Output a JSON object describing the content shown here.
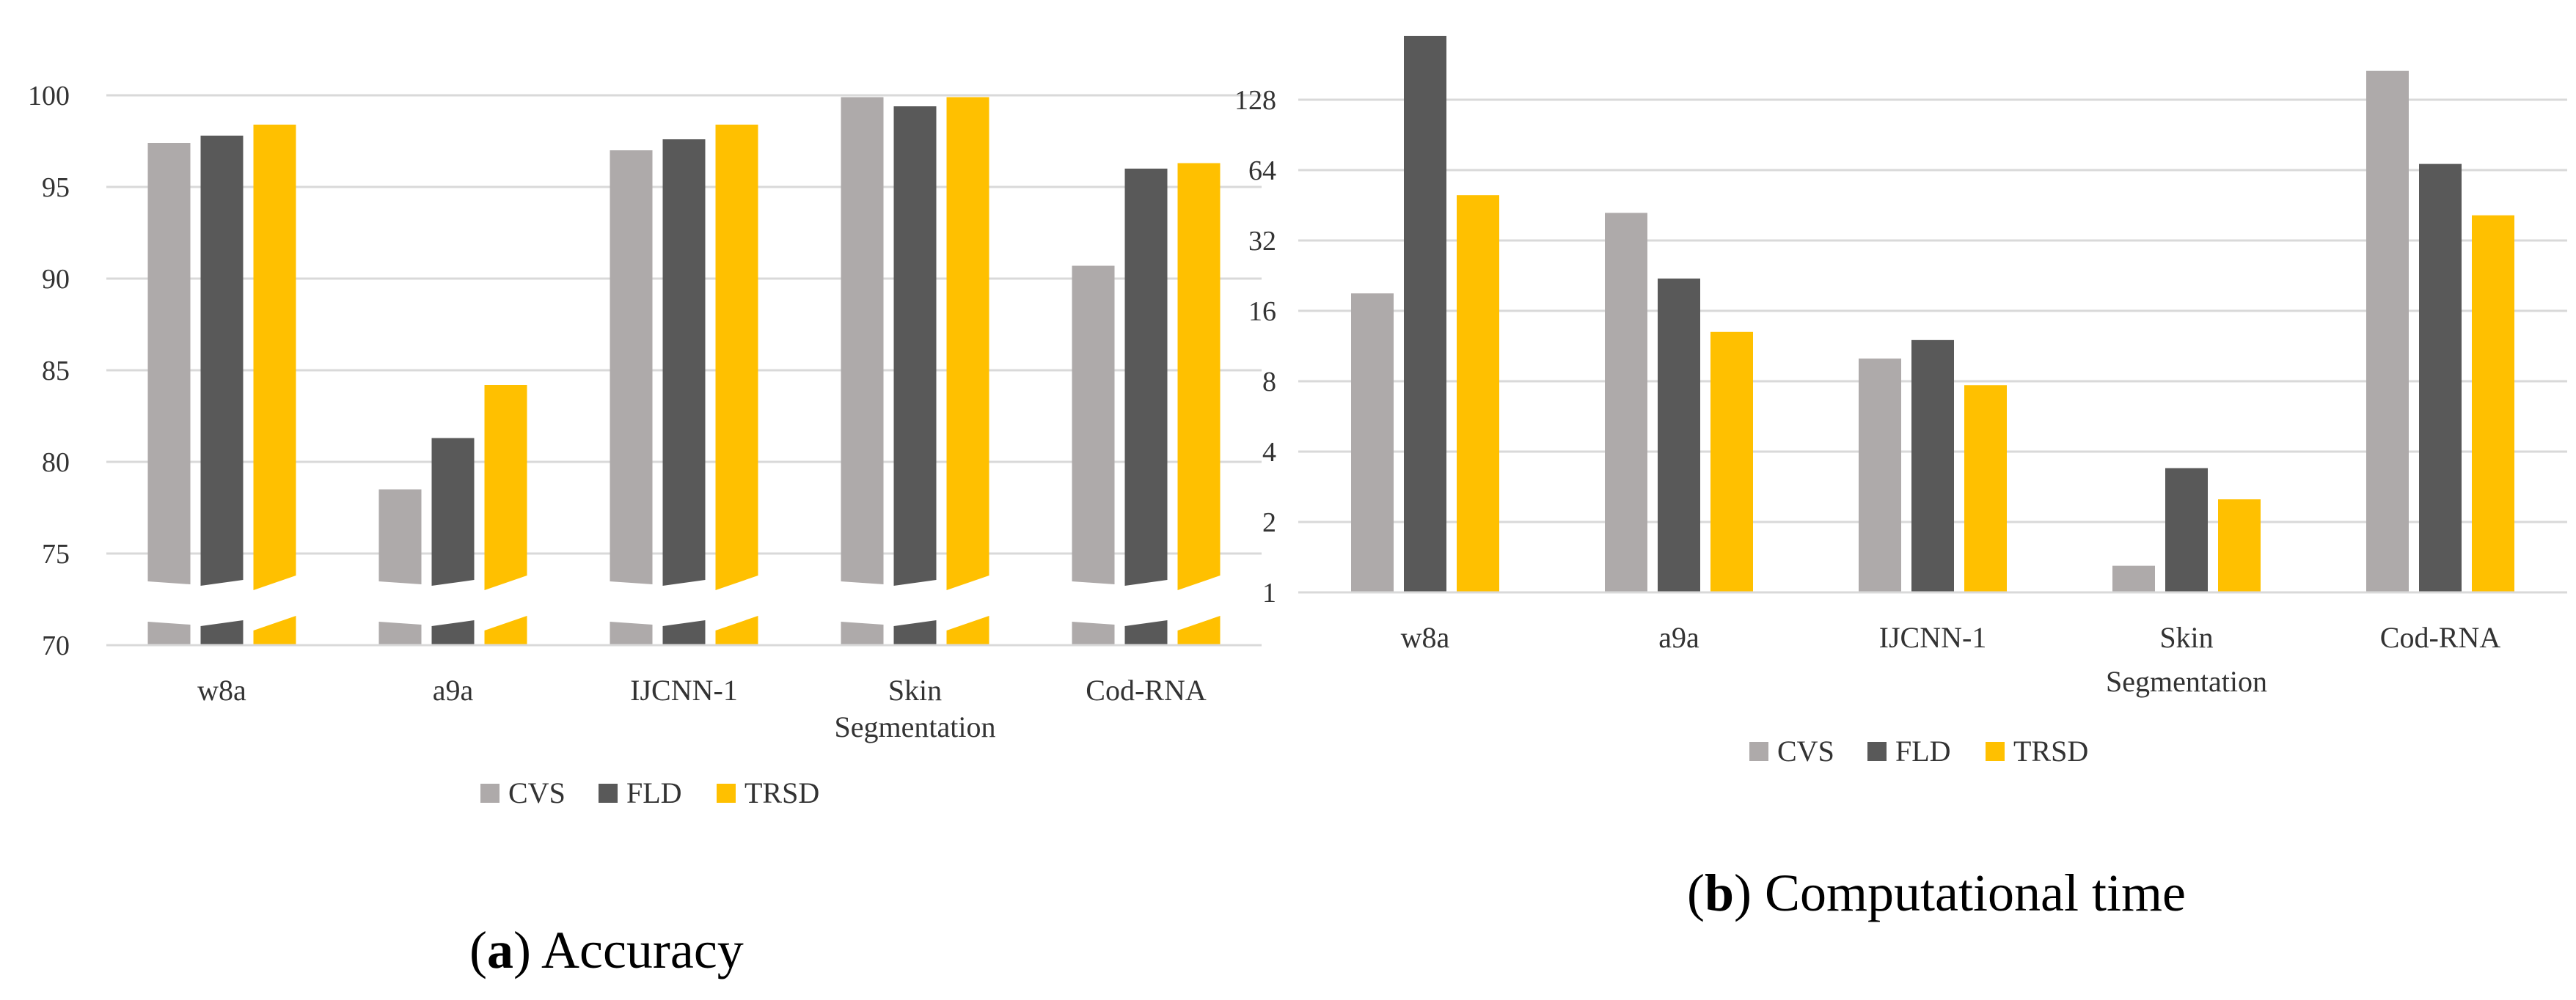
{
  "colors": {
    "CVS": "#aeaaaa",
    "FLD": "#595959",
    "TRSD": "#ffc000",
    "grid": "#d9d9d9"
  },
  "chart_data": [
    {
      "id": "accuracy",
      "type": "bar",
      "title": "",
      "caption_letter": "a",
      "caption_text": "Accuracy",
      "categories": [
        "w8a",
        "a9a",
        "IJCNN-1",
        "Skin Segmentation",
        "Cod-RNA"
      ],
      "series": [
        {
          "name": "CVS",
          "values": [
            97.4,
            78.5,
            97.0,
            99.9,
            90.7
          ]
        },
        {
          "name": "FLD",
          "values": [
            97.8,
            81.3,
            97.6,
            99.4,
            96.0
          ]
        },
        {
          "name": "TRSD",
          "values": [
            98.4,
            84.2,
            98.4,
            99.9,
            96.3
          ]
        }
      ],
      "ylim": [
        70,
        100
      ],
      "yticks": [
        "70",
        "75",
        "80",
        "85",
        "90",
        "95",
        "100"
      ],
      "axis_break": true,
      "legend": [
        "CVS",
        "FLD",
        "TRSD"
      ],
      "legend_position": "bottom",
      "grid": true
    },
    {
      "id": "time",
      "type": "bar",
      "title": "",
      "caption_letter": "b",
      "caption_text": "Computational time",
      "categories": [
        "w8a",
        "a9a",
        "IJCNN-1",
        "Skin Segmentation",
        "Cod-RNA"
      ],
      "series": [
        {
          "name": "CVS",
          "values": [
            19,
            42,
            10,
            1.3,
            170
          ]
        },
        {
          "name": "FLD",
          "values": [
            240,
            22,
            12,
            3.4,
            68
          ]
        },
        {
          "name": "TRSD",
          "values": [
            50,
            13,
            7.7,
            2.5,
            41
          ]
        }
      ],
      "yscale": "log2",
      "ylim": [
        1,
        256
      ],
      "yticks": [
        "1",
        "2",
        "4",
        "8",
        "16",
        "32",
        "64",
        "128"
      ],
      "legend": [
        "CVS",
        "FLD",
        "TRSD"
      ],
      "legend_position": "bottom",
      "grid": true
    }
  ]
}
